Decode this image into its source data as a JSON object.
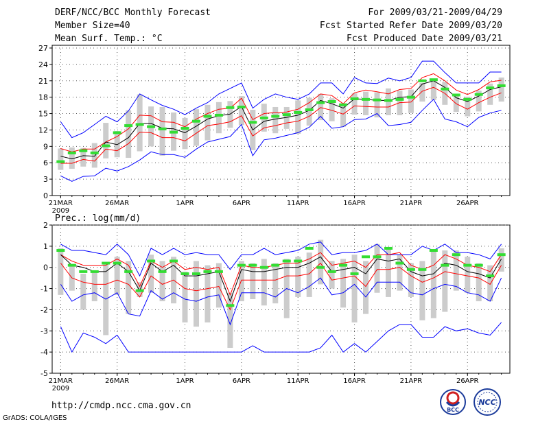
{
  "header": {
    "title": "DERF/NCC/BCC Monthly Forecast",
    "member_size": "Member Size=40",
    "variable": "Mean Surf. Temp.: °C",
    "period": "For 2009/03/21-2009/04/29",
    "start_date": "Fcst Started Refer Date 2009/03/20",
    "produced_date": "Fcst Produced Date 2009/03/21"
  },
  "footer": {
    "url": "http://cmdp.ncc.cma.gov.cn",
    "credit": "GrADS: COLA/IGES",
    "logo_bcc": "BCC",
    "logo_ncc": "NCC"
  },
  "colors": {
    "ensemble_mean": "#000000",
    "spread": "#ff0000",
    "extremes": "#0000ff",
    "observed": "#33dd33",
    "box": "#cccccc",
    "grid": "#555555"
  },
  "chart_data": [
    {
      "type": "line",
      "title": "Mean Surf. Temp.: °C",
      "ylabel": "°C",
      "ylim": [
        0,
        27.5
      ],
      "yticks": [
        "0",
        "3",
        "6",
        "9",
        "12",
        "15",
        "18",
        "21",
        "24",
        "27"
      ],
      "ytick_values": [
        0,
        3,
        6,
        9,
        12,
        15,
        18,
        21,
        24,
        27
      ],
      "xticks": [
        "21MAR",
        "26MAR",
        "1APR",
        "6APR",
        "11APR",
        "16APR",
        "21APR",
        "26APR"
      ],
      "xtick_days": [
        1,
        6,
        12,
        17,
        22,
        27,
        32,
        37
      ],
      "xtick_year": "2009",
      "x": [
        1,
        2,
        3,
        4,
        5,
        6,
        7,
        8,
        9,
        10,
        11,
        12,
        13,
        14,
        15,
        16,
        17,
        18,
        19,
        20,
        21,
        22,
        23,
        24,
        25,
        26,
        27,
        28,
        29,
        30,
        31,
        32,
        33,
        34,
        35,
        36,
        37,
        38,
        39,
        40
      ],
      "series": [
        {
          "name": "max",
          "values": [
            13.5,
            10.6,
            11.5,
            13.0,
            14.5,
            13.5,
            15.5,
            18.6,
            17.5,
            16.5,
            15.8,
            14.8,
            16.0,
            17.0,
            18.6,
            19.6,
            20.6,
            16.0,
            17.6,
            18.6,
            18.0,
            17.6,
            18.6,
            20.6,
            20.6,
            18.6,
            21.6,
            20.6,
            20.5,
            21.5,
            21.0,
            21.6,
            24.6,
            24.6,
            22.5,
            20.6,
            20.6,
            20.6,
            22.6,
            22.6
          ]
        },
        {
          "name": "upper",
          "values": [
            8.6,
            8.0,
            8.5,
            8.5,
            9.8,
            10.8,
            12.2,
            14.7,
            14.6,
            13.5,
            13.4,
            12.6,
            14.0,
            15.0,
            15.8,
            16.0,
            17.8,
            13.9,
            15.0,
            15.2,
            15.3,
            15.8,
            17.0,
            18.6,
            18.3,
            16.8,
            18.8,
            19.3,
            19.0,
            18.6,
            19.4,
            19.6,
            21.6,
            22.3,
            21.0,
            19.3,
            18.5,
            19.4,
            20.8,
            21.1
          ]
        },
        {
          "name": "mean",
          "values": [
            7.2,
            6.7,
            7.3,
            7.2,
            9.8,
            9.3,
            10.6,
            13.2,
            13.2,
            12.3,
            12.2,
            11.5,
            12.7,
            14.0,
            14.6,
            14.9,
            16.3,
            12.0,
            13.6,
            14.0,
            14.3,
            14.7,
            15.6,
            17.4,
            16.8,
            16.0,
            17.7,
            17.6,
            17.4,
            17.4,
            18.0,
            18.1,
            20.4,
            21.0,
            19.8,
            17.9,
            17.2,
            18.2,
            19.4,
            19.9
          ]
        },
        {
          "name": "lower",
          "values": [
            5.9,
            5.9,
            6.6,
            6.3,
            8.5,
            8.2,
            9.5,
            11.6,
            11.5,
            10.6,
            10.6,
            10.0,
            11.4,
            12.8,
            13.1,
            13.5,
            14.6,
            10.9,
            12.4,
            12.8,
            13.3,
            13.6,
            14.5,
            16.1,
            15.6,
            14.9,
            16.4,
            16.3,
            16.2,
            16.2,
            17.0,
            17.1,
            19.1,
            19.8,
            18.7,
            16.8,
            15.8,
            17.0,
            18.0,
            18.8
          ]
        },
        {
          "name": "min",
          "values": [
            3.6,
            2.6,
            3.5,
            3.6,
            5.0,
            4.5,
            5.3,
            6.5,
            8.0,
            7.5,
            7.5,
            7.0,
            8.5,
            9.8,
            10.3,
            10.8,
            13.0,
            7.3,
            10.2,
            10.5,
            11.0,
            11.5,
            12.5,
            14.5,
            12.3,
            12.6,
            13.9,
            14.0,
            15.0,
            12.8,
            13.0,
            13.4,
            15.6,
            17.6,
            14.0,
            13.5,
            12.6,
            14.3,
            15.1,
            15.6
          ]
        },
        {
          "name": "box_top",
          "values": [
            8.6,
            8.8,
            8.7,
            9.6,
            13.3,
            11.8,
            15.6,
            18.5,
            16.3,
            16.2,
            15.2,
            14.2,
            15.8,
            16.6,
            17.1,
            17.3,
            18.2,
            15.7,
            16.8,
            16.2,
            16.2,
            17.4,
            17.9,
            18.6,
            17.8,
            16.9,
            18.7,
            19.0,
            18.9,
            19.6,
            19.2,
            19.4,
            20.6,
            21.2,
            20.8,
            18.6,
            18.1,
            19.2,
            20.5,
            21.6
          ]
        },
        {
          "name": "box_bottom",
          "values": [
            4.7,
            4.9,
            5.3,
            5.1,
            6.8,
            7.0,
            6.9,
            8.1,
            9.0,
            7.3,
            8.2,
            8.5,
            9.1,
            10.1,
            11.4,
            12.4,
            12.9,
            8.3,
            11.7,
            11.4,
            12.2,
            11.3,
            12.8,
            13.8,
            13.6,
            12.6,
            14.8,
            14.7,
            14.3,
            14.7,
            14.7,
            15.1,
            17.2,
            17.5,
            16.6,
            15.3,
            14.5,
            15.4,
            16.6,
            17.2
          ]
        },
        {
          "name": "observed",
          "values": [
            6.2,
            7.8,
            8.2,
            7.8,
            9.1,
            11.5,
            12.8,
            13.0,
            12.6,
            12.2,
            11.6,
            12.3,
            13.6,
            14.5,
            14.7,
            16.1,
            16.2,
            13.4,
            14.2,
            14.5,
            14.8,
            15.2,
            15.7,
            17.0,
            17.2,
            16.6,
            17.7,
            17.6,
            17.5,
            17.4,
            17.6,
            18.0,
            21.0,
            21.2,
            19.5,
            18.4,
            17.6,
            18.5,
            19.7,
            20.1
          ]
        }
      ]
    },
    {
      "type": "line",
      "title": "Prec.: log(mm/d)",
      "ylabel": "log(mm/d)",
      "ylim": [
        -5,
        2
      ],
      "yticks": [
        "-5",
        "-4",
        "-3",
        "-2",
        "-1",
        "0",
        "1",
        "2"
      ],
      "ytick_values": [
        -5,
        -4,
        -3,
        -2,
        -1,
        0,
        1,
        2
      ],
      "xticks": [
        "21MAR",
        "26MAR",
        "1APR",
        "6APR",
        "11APR",
        "16APR",
        "21APR",
        "26APR"
      ],
      "xtick_days": [
        1,
        6,
        12,
        17,
        22,
        27,
        32,
        37
      ],
      "xtick_year": "2009",
      "x": [
        1,
        2,
        3,
        4,
        5,
        6,
        7,
        8,
        9,
        10,
        11,
        12,
        13,
        14,
        15,
        16,
        17,
        18,
        19,
        20,
        21,
        22,
        23,
        24,
        25,
        26,
        27,
        28,
        29,
        30,
        31,
        32,
        33,
        34,
        35,
        36,
        37,
        38,
        39,
        40
      ],
      "series": [
        {
          "name": "max",
          "values": [
            1.1,
            0.8,
            0.8,
            0.7,
            0.6,
            1.1,
            0.6,
            -0.4,
            0.9,
            0.6,
            0.9,
            0.6,
            0.7,
            0.6,
            0.6,
            -0.1,
            0.6,
            0.6,
            0.9,
            0.6,
            0.7,
            0.8,
            1.1,
            1.2,
            0.6,
            0.7,
            0.7,
            0.8,
            1.1,
            0.6,
            0.6,
            0.6,
            1.0,
            0.8,
            1.1,
            0.7,
            0.7,
            0.6,
            0.4,
            1.1
          ]
        },
        {
          "name": "upper",
          "values": [
            0.6,
            0.3,
            0.1,
            0.1,
            0.1,
            0.4,
            0.1,
            -0.9,
            0.3,
            0.0,
            0.3,
            -0.1,
            0.0,
            -0.1,
            0.0,
            -1.3,
            0.1,
            0.0,
            0.0,
            0.1,
            0.2,
            0.2,
            0.4,
            0.7,
            0.1,
            0.2,
            0.3,
            0.0,
            0.6,
            0.6,
            0.7,
            0.1,
            -0.1,
            0.1,
            0.6,
            0.4,
            0.1,
            0.0,
            -0.2,
            0.6
          ]
        },
        {
          "name": "mean",
          "values": [
            0.6,
            0.1,
            0.0,
            -0.2,
            -0.2,
            0.2,
            -0.2,
            -1.1,
            0.2,
            -0.2,
            0.1,
            -0.4,
            -0.4,
            -0.3,
            -0.2,
            -1.6,
            -0.1,
            -0.2,
            -0.2,
            -0.1,
            0.0,
            0.0,
            0.2,
            0.5,
            -0.2,
            -0.1,
            0.0,
            -0.3,
            0.4,
            0.3,
            0.4,
            -0.2,
            -0.4,
            -0.3,
            0.2,
            0.1,
            -0.2,
            -0.3,
            -0.5,
            0.4
          ]
        },
        {
          "name": "lower",
          "values": [
            0.2,
            -0.5,
            -0.7,
            -0.8,
            -0.8,
            -0.6,
            -0.8,
            -1.4,
            -0.4,
            -0.8,
            -0.6,
            -1.0,
            -1.1,
            -1.0,
            -0.9,
            -2.0,
            -0.6,
            -0.6,
            -0.6,
            -0.6,
            -0.4,
            -0.4,
            -0.3,
            0.2,
            -0.6,
            -0.5,
            -0.4,
            -0.9,
            -0.1,
            -0.1,
            0.0,
            -0.4,
            -0.7,
            -0.5,
            -0.2,
            -0.3,
            -0.4,
            -0.5,
            -0.8,
            0.1
          ]
        },
        {
          "name": "min",
          "values": [
            -0.8,
            -1.6,
            -1.3,
            -1.2,
            -1.5,
            -1.2,
            -2.2,
            -2.3,
            -1.1,
            -1.5,
            -1.2,
            -1.5,
            -1.6,
            -1.4,
            -1.3,
            -2.7,
            -1.2,
            -1.2,
            -1.2,
            -1.4,
            -1.0,
            -1.2,
            -0.9,
            -0.5,
            -1.3,
            -1.2,
            -0.8,
            -1.4,
            -0.7,
            -0.7,
            -0.7,
            -1.2,
            -1.3,
            -1.0,
            -0.8,
            -0.9,
            -1.2,
            -1.3,
            -1.6,
            -0.5
          ]
        },
        {
          "name": "extreme_min",
          "values": [
            -2.8,
            -4.0,
            -3.1,
            -3.3,
            -3.6,
            -3.2,
            -4.0,
            -4.0,
            -4.0,
            -4.0,
            -4.0,
            -4.0,
            -4.0,
            -4.0,
            -4.0,
            -4.0,
            -4.0,
            -3.7,
            -4.0,
            -4.0,
            -4.0,
            -4.0,
            -4.0,
            -3.8,
            -3.2,
            -4.0,
            -3.6,
            -4.0,
            -3.5,
            -3.0,
            -2.7,
            -2.7,
            -3.3,
            -3.3,
            -2.8,
            -3.0,
            -2.9,
            -3.1,
            -3.2,
            -2.6
          ]
        },
        {
          "name": "box_top",
          "values": [
            0.9,
            0.1,
            -0.3,
            -0.2,
            0.2,
            0.5,
            0.3,
            -0.7,
            0.6,
            0.3,
            0.5,
            -0.2,
            0.3,
            0.1,
            0.2,
            -1.2,
            0.3,
            0.2,
            0.4,
            0.2,
            0.4,
            0.5,
            0.7,
            1.3,
            0.3,
            0.4,
            0.6,
            0.3,
            1.1,
            0.9,
            0.6,
            0.2,
            0.3,
            0.8,
            0.8,
            0.8,
            0.5,
            0.2,
            0.1,
            0.9
          ]
        },
        {
          "name": "box_bottom",
          "values": [
            -1.3,
            -1.1,
            -2.0,
            -1.6,
            -3.2,
            -1.3,
            -2.2,
            -1.4,
            -1.2,
            -1.6,
            -1.7,
            -2.6,
            -2.8,
            -2.6,
            -1.9,
            -3.8,
            -1.6,
            -1.5,
            -1.8,
            -1.7,
            -2.4,
            -1.4,
            -1.4,
            -0.8,
            -1.0,
            -1.9,
            -2.6,
            -2.2,
            -1.2,
            -1.4,
            -1.1,
            -1.4,
            -2.5,
            -2.4,
            -2.1,
            -1.1,
            -1.2,
            -1.6,
            -1.6,
            -0.2
          ]
        },
        {
          "name": "observed",
          "values": [
            0.8,
            0.1,
            -0.2,
            -0.2,
            0.2,
            0.2,
            -0.2,
            -1.1,
            0.3,
            -0.2,
            0.3,
            -0.3,
            -0.3,
            -0.2,
            -0.2,
            -1.8,
            0.1,
            0.1,
            0.0,
            0.1,
            0.3,
            0.3,
            0.9,
            0.0,
            -0.2,
            0.1,
            -0.3,
            0.5,
            0.5,
            0.9,
            0.2,
            -0.1,
            -0.1,
            0.8,
            0.1,
            0.6,
            0.1,
            0.1,
            -0.4,
            0.6
          ]
        }
      ]
    }
  ]
}
